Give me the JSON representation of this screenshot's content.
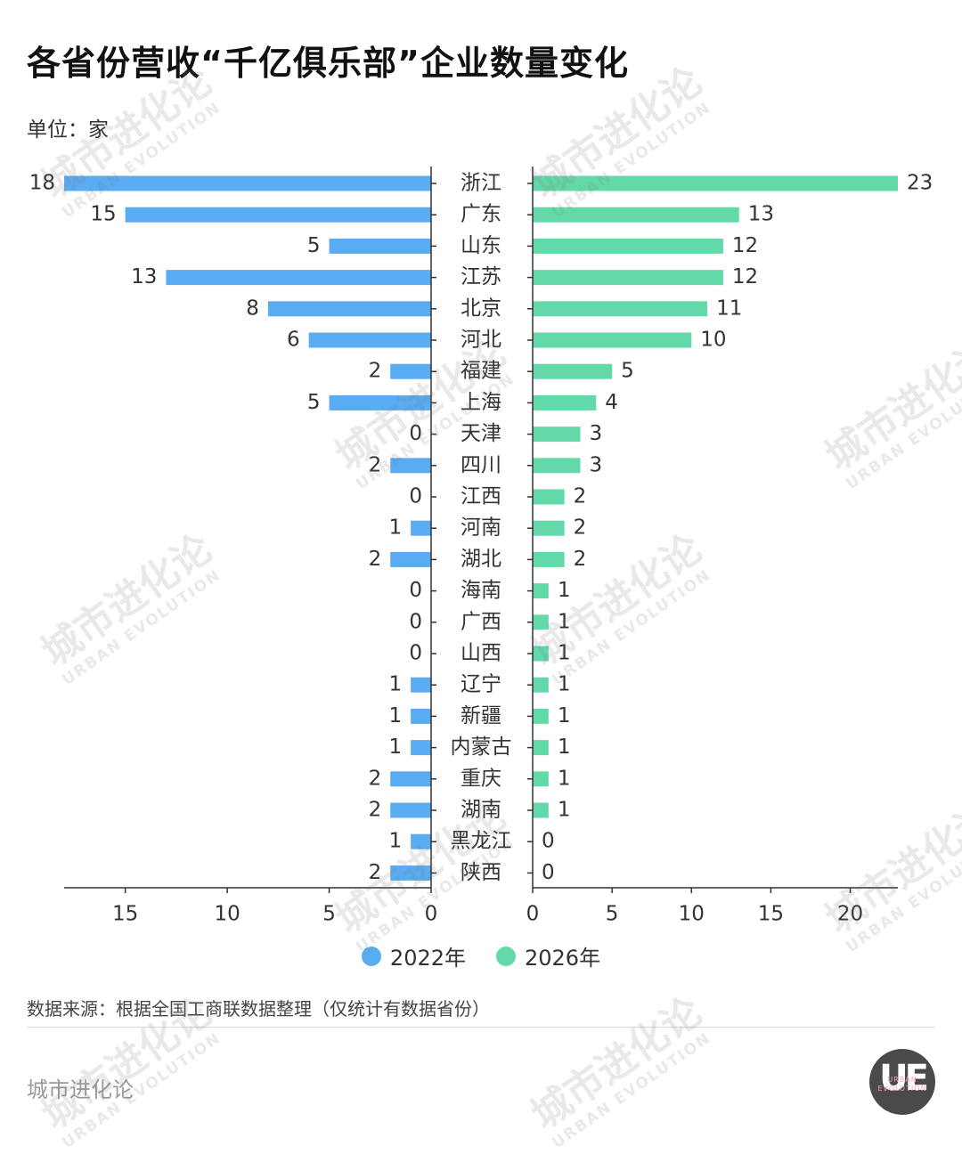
{
  "title": "各省份营收“千亿俱乐部”企业数量变化",
  "unit": "单位：家",
  "colors": {
    "series_2022": "#5aacf2",
    "series_2026": "#63d9aa",
    "axis": "#333333",
    "text": "#333333"
  },
  "chart_data": {
    "type": "bar",
    "orientation": "horizontal-butterfly",
    "categories": [
      "浙江",
      "广东",
      "山东",
      "江苏",
      "北京",
      "河北",
      "福建",
      "上海",
      "天津",
      "四川",
      "江西",
      "河南",
      "湖北",
      "海南",
      "广西",
      "山西",
      "辽宁",
      "新疆",
      "内蒙古",
      "重庆",
      "湖南",
      "黑龙江",
      "陕西"
    ],
    "series": [
      {
        "name": "2022年",
        "values": [
          18,
          15,
          5,
          13,
          8,
          6,
          2,
          5,
          0,
          2,
          0,
          1,
          2,
          0,
          0,
          0,
          1,
          1,
          1,
          2,
          2,
          1,
          2
        ]
      },
      {
        "name": "2026年",
        "values": [
          23,
          13,
          12,
          12,
          11,
          10,
          5,
          4,
          3,
          3,
          2,
          2,
          2,
          1,
          1,
          1,
          1,
          1,
          1,
          1,
          1,
          0,
          0
        ]
      }
    ],
    "left_axis": {
      "ticks": [
        15,
        10,
        5,
        0
      ],
      "range": [
        18,
        0
      ]
    },
    "right_axis": {
      "ticks": [
        0,
        5,
        10,
        15,
        20
      ],
      "range": [
        0,
        23
      ]
    },
    "legend_position": "bottom-center"
  },
  "legend": {
    "items": [
      "2022年",
      "2026年"
    ]
  },
  "source": "数据来源：根据全国工商联数据整理（仅统计有数据省份）",
  "footer": {
    "brand": "城市进化论",
    "logo_text": "UE",
    "logo_sub": "URBAN EVOLUTION"
  },
  "watermark": {
    "main": "城市进化论",
    "sub": "URBAN EVOLUTION"
  }
}
